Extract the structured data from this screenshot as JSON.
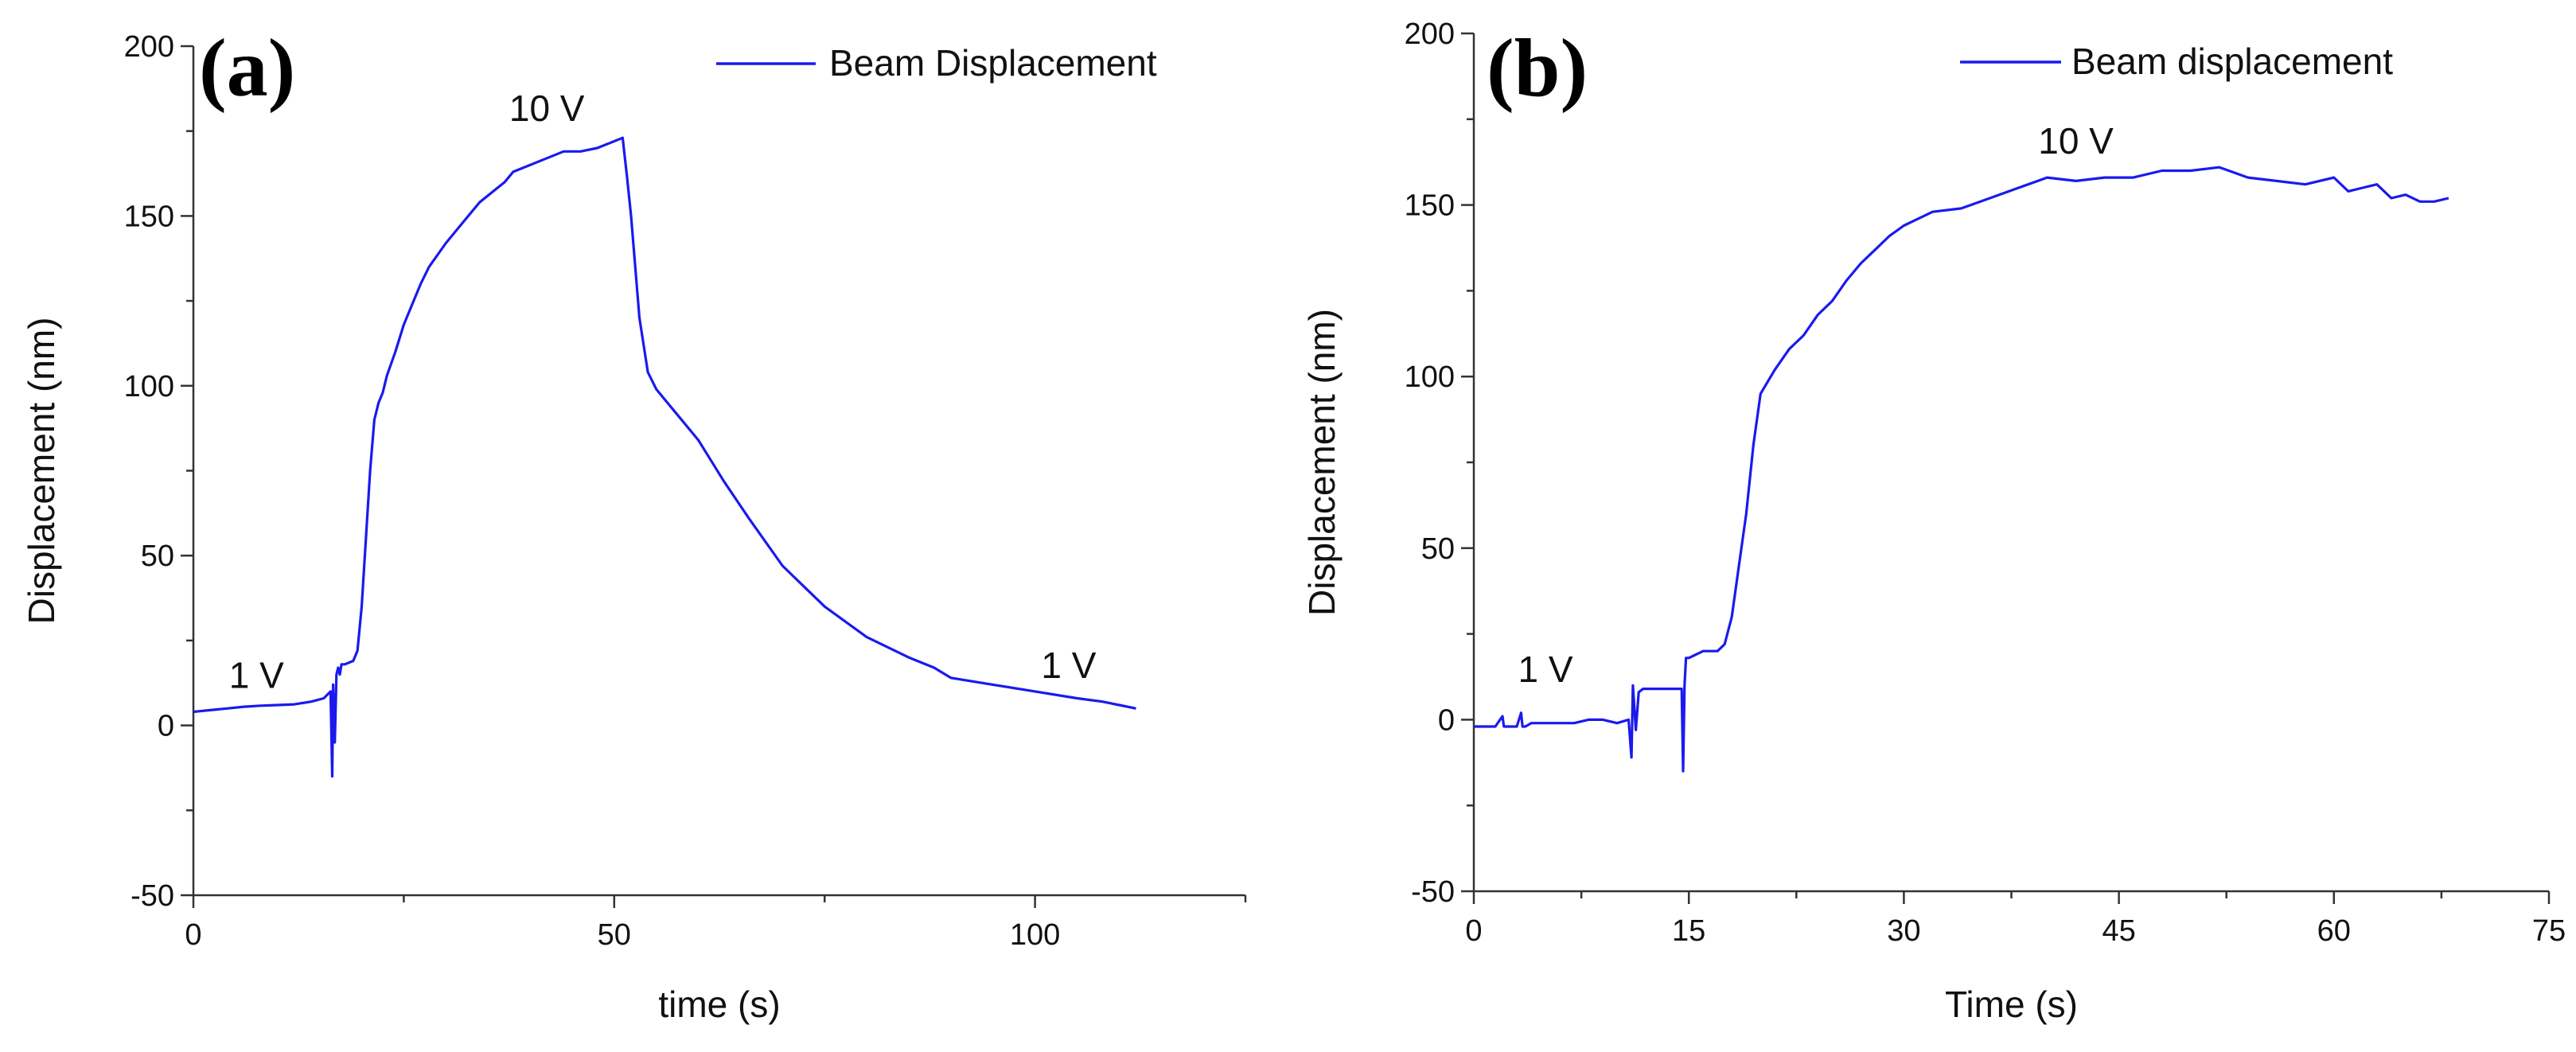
{
  "series_color": "#1a1aee",
  "chart_data": [
    {
      "type": "line",
      "panel_label": "(a)",
      "title": "",
      "xlabel": "time (s)",
      "ylabel": "Displacement (nm)",
      "xlim": [
        0,
        125
      ],
      "ylim": [
        -50,
        200
      ],
      "xticks": [
        0,
        50,
        100
      ],
      "yticks": [
        -50,
        0,
        50,
        100,
        150,
        200
      ],
      "xtick_labels": [
        "0",
        "50",
        "100"
      ],
      "ytick_labels": [
        "-50",
        "0",
        "50",
        "100",
        "150",
        "200"
      ],
      "legend": [
        "Beam Displacement"
      ],
      "legend_position": "top-right",
      "annotations": [
        {
          "text": "1 V",
          "x": 7.5,
          "y": 11
        },
        {
          "text": "10 V",
          "x": 42,
          "y": 178
        },
        {
          "text": "1 V",
          "x": 104,
          "y": 14
        }
      ],
      "series": [
        {
          "name": "Beam Displacement",
          "x": [
            0,
            2,
            4,
            6,
            8,
            10,
            12,
            14,
            15.5,
            16.3,
            16.5,
            16.6,
            16.8,
            17.0,
            17.2,
            17.4,
            17.6,
            18.0,
            19.0,
            19.5,
            20.0,
            20.5,
            21.0,
            21.5,
            22.0,
            22.5,
            23.0,
            24.0,
            25.0,
            26.0,
            27.0,
            28.0,
            30.0,
            32.0,
            34.0,
            36.0,
            37.0,
            38.0,
            40.0,
            42.0,
            44.0,
            46.0,
            48.0,
            50.0,
            51.0,
            51.5,
            52.0,
            53.0,
            54.0,
            55.0,
            57.0,
            60.0,
            63.0,
            66.0,
            70.0,
            75.0,
            80.0,
            85.0,
            88.0,
            90.0,
            95.0,
            100.0,
            105.0,
            108.0,
            110.0,
            112.0
          ],
          "y": [
            4,
            4.5,
            5,
            5.5,
            5.8,
            6,
            6.2,
            7,
            8,
            10,
            -15,
            12,
            -5,
            15,
            17,
            15,
            18,
            18,
            19,
            22,
            35,
            55,
            75,
            90,
            95,
            98,
            103,
            110,
            118,
            124,
            130,
            135,
            142,
            148,
            154,
            158,
            160,
            163,
            165,
            167,
            169,
            169,
            170,
            172,
            173,
            162,
            150,
            120,
            104,
            99,
            93,
            84,
            72,
            61,
            47,
            35,
            26,
            20,
            17,
            14,
            12,
            10,
            8,
            7,
            6,
            5
          ]
        }
      ]
    },
    {
      "type": "line",
      "panel_label": "(b)",
      "title": "",
      "xlabel": "Time (s)",
      "ylabel": "Displacement (nm)",
      "xlim": [
        0,
        75
      ],
      "ylim": [
        -50,
        200
      ],
      "xticks": [
        0,
        15,
        30,
        45,
        60,
        75
      ],
      "yticks": [
        -50,
        0,
        50,
        100,
        150,
        200
      ],
      "xtick_labels": [
        "0",
        "15",
        "30",
        "45",
        "60",
        "75"
      ],
      "ytick_labels": [
        "-50",
        "0",
        "50",
        "100",
        "150",
        "200"
      ],
      "legend": [
        "Beam displacement"
      ],
      "legend_position": "top-right",
      "annotations": [
        {
          "text": "1 V",
          "x": 5,
          "y": 11
        },
        {
          "text": "10 V",
          "x": 42,
          "y": 165
        }
      ],
      "series": [
        {
          "name": "Beam displacement",
          "x": [
            0,
            1.5,
            2.0,
            2.1,
            2.3,
            3.0,
            3.3,
            3.4,
            3.6,
            4.0,
            5.0,
            6.0,
            7.0,
            8.0,
            9.0,
            10.0,
            10.8,
            11.0,
            11.1,
            11.3,
            11.5,
            11.8,
            12.0,
            13.0,
            14.0,
            14.5,
            14.6,
            14.7,
            14.8,
            15.0,
            16.0,
            17.0,
            17.5,
            18.0,
            18.5,
            19.0,
            19.5,
            20.0,
            21.0,
            22.0,
            23.0,
            24.0,
            25.0,
            26.0,
            27.0,
            28.0,
            29.0,
            30.0,
            32.0,
            34.0,
            36.0,
            38.0,
            40.0,
            42.0,
            44.0,
            46.0,
            48.0,
            50.0,
            52.0,
            54.0,
            56.0,
            58.0,
            60.0,
            61.0,
            62.0,
            63.0,
            64.0,
            65.0,
            66.0,
            67.0,
            68.0
          ],
          "y": [
            -2,
            -2,
            1,
            -2,
            -2,
            -2,
            2,
            -2,
            -2,
            -1,
            -1,
            -1,
            -1,
            0,
            0,
            -1,
            0,
            -11,
            10,
            -3,
            8,
            9,
            9,
            9,
            9,
            9,
            -15,
            10,
            18,
            18,
            20,
            20,
            22,
            30,
            45,
            60,
            80,
            95,
            102,
            108,
            112,
            118,
            122,
            128,
            133,
            137,
            141,
            144,
            148,
            149,
            152,
            155,
            158,
            157,
            158,
            158,
            160,
            160,
            161,
            158,
            157,
            156,
            158,
            154,
            155,
            156,
            152,
            153,
            151,
            151,
            152
          ]
        }
      ]
    }
  ]
}
